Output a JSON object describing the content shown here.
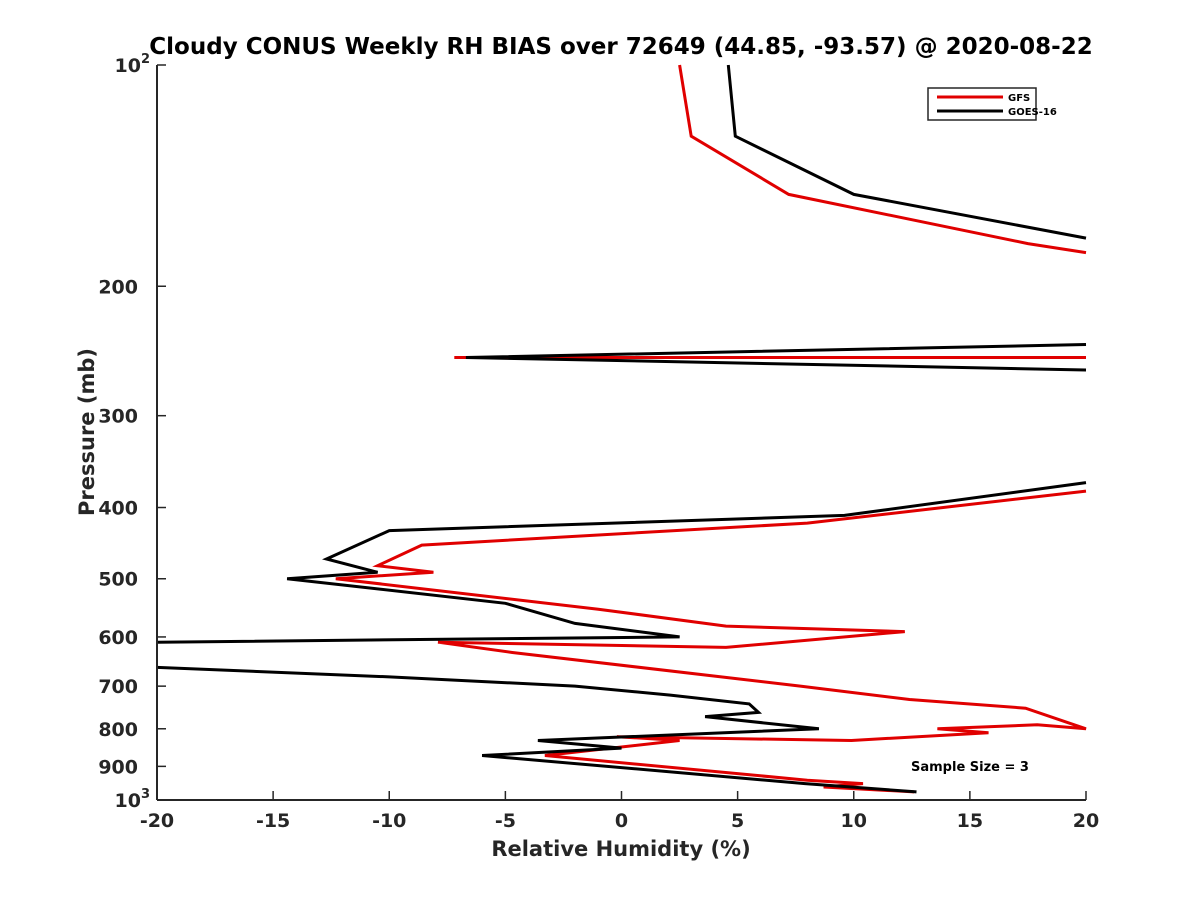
{
  "chart_data": {
    "type": "line",
    "title": "Cloudy CONUS Weekly RH BIAS over 72649 (44.85, -93.57) @ 2020-08-22",
    "xlabel": "Relative Humidity (%)",
    "ylabel": "Pressure (mb)",
    "xlim": [
      -20,
      20
    ],
    "ylim": [
      100,
      1000
    ],
    "y_scale": "log",
    "y_reversed": true,
    "xticks": [
      -20,
      -15,
      -10,
      -5,
      0,
      5,
      10,
      15,
      20
    ],
    "xtick_labels": [
      "-20",
      "-15",
      "-10",
      "-5",
      "0",
      "5",
      "10",
      "15",
      "20"
    ],
    "yticks": [
      {
        "value": 100,
        "base": "10",
        "exp": "2"
      },
      {
        "value": 200,
        "label": "200"
      },
      {
        "value": 300,
        "label": "300"
      },
      {
        "value": 400,
        "label": "400"
      },
      {
        "value": 500,
        "label": "500"
      },
      {
        "value": 600,
        "label": "600"
      },
      {
        "value": 700,
        "label": "700"
      },
      {
        "value": 800,
        "label": "800"
      },
      {
        "value": 900,
        "label": "900"
      },
      {
        "value": 1000,
        "base": "10",
        "exp": "3"
      }
    ],
    "grid": false,
    "legend_position": "top-right",
    "annotation": "Sample Size = 3",
    "series": [
      {
        "name": "GFS",
        "color": "#e00000",
        "points": [
          [
            2.5,
            100
          ],
          [
            3.0,
            125
          ],
          [
            7.2,
            150
          ],
          [
            17.5,
            175
          ],
          [
            20,
            180
          ],
          [
            null,
            null
          ],
          [
            -7.2,
            250
          ],
          [
            20,
            250
          ],
          [
            null,
            null
          ],
          [
            20,
            380
          ],
          [
            8.0,
            420
          ],
          [
            -8.6,
            450
          ],
          [
            -10.5,
            480
          ],
          [
            -8.1,
            490
          ],
          [
            -12.3,
            500
          ],
          [
            -1.0,
            550
          ],
          [
            4.5,
            580
          ],
          [
            12.2,
            590
          ],
          [
            4.5,
            620
          ],
          [
            -7.9,
            610
          ],
          [
            -4.7,
            630
          ],
          [
            7.7,
            700
          ],
          [
            12.4,
            730
          ],
          [
            17.4,
            750
          ],
          [
            20,
            800
          ],
          [
            17.9,
            790
          ],
          [
            13.6,
            800
          ],
          [
            15.8,
            810
          ],
          [
            9.9,
            830
          ],
          [
            -0.2,
            820
          ],
          [
            2.5,
            830
          ],
          [
            -3.3,
            870
          ],
          [
            8.0,
            940
          ],
          [
            10.4,
            950
          ],
          [
            8.7,
            960
          ],
          [
            12.6,
            975
          ]
        ]
      },
      {
        "name": "GOES-16",
        "color": "#000000",
        "points": [
          [
            4.6,
            100
          ],
          [
            4.9,
            125
          ],
          [
            10.0,
            150
          ],
          [
            20,
            172
          ],
          [
            null,
            null
          ],
          [
            -6.7,
            250
          ],
          [
            20,
            240
          ],
          [
            -6.7,
            250
          ],
          [
            20,
            260
          ],
          [
            null,
            null
          ],
          [
            20,
            370
          ],
          [
            9.6,
            410
          ],
          [
            -10.0,
            430
          ],
          [
            -12.7,
            470
          ],
          [
            -10.5,
            490
          ],
          [
            -14.4,
            500
          ],
          [
            -5.0,
            540
          ],
          [
            -2.0,
            575
          ],
          [
            2.5,
            600
          ],
          [
            -20,
            610
          ],
          [
            null,
            null
          ],
          [
            -20,
            660
          ],
          [
            -10.0,
            680
          ],
          [
            -2.0,
            700
          ],
          [
            2.1,
            720
          ],
          [
            5.5,
            740
          ],
          [
            5.9,
            760
          ],
          [
            3.6,
            770
          ],
          [
            8.5,
            800
          ],
          [
            -3.6,
            830
          ],
          [
            0,
            850
          ],
          [
            -6.0,
            870
          ],
          [
            7.9,
            950
          ],
          [
            12.7,
            975
          ]
        ]
      }
    ]
  }
}
